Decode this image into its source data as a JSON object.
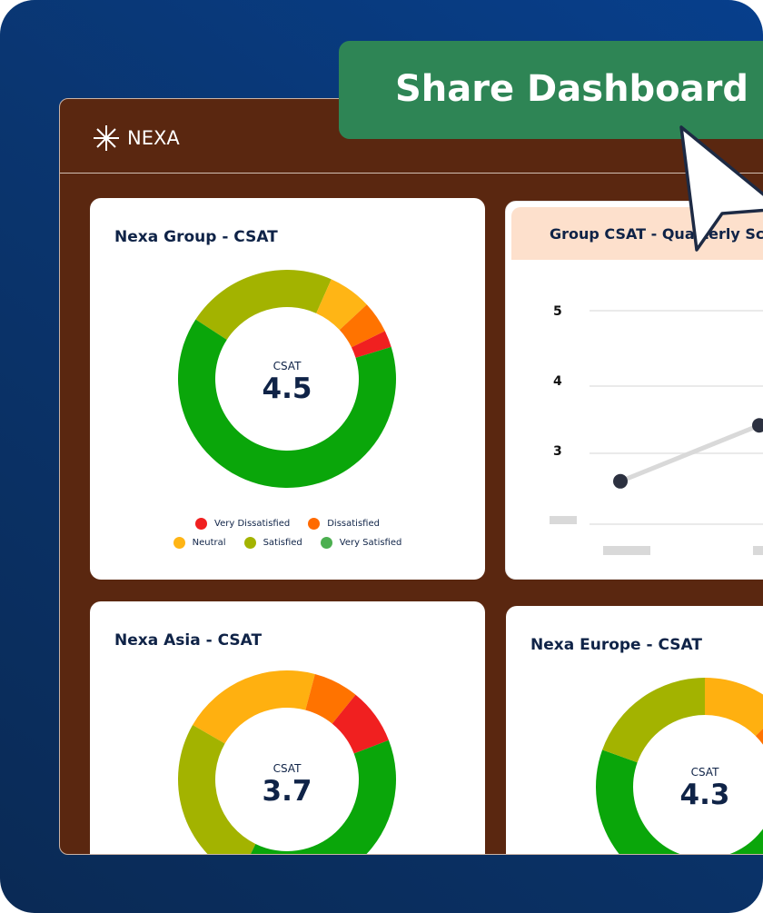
{
  "share_button": {
    "label": "Share Dashboard"
  },
  "header": {
    "brand": "NEXA",
    "logo_icon": "asterisk-star-icon"
  },
  "legend": [
    {
      "label": "Very Dissatisfied",
      "color": "#f02020"
    },
    {
      "label": "Dissatisfied",
      "color": "#ff6a00"
    },
    {
      "label": "Neutral",
      "color": "#ffb515"
    },
    {
      "label": "Satisfied",
      "color": "#a3b300"
    },
    {
      "label": "Very Satisfied",
      "color": "#4caf50"
    }
  ],
  "cards": [
    {
      "title": "Nexa Group - CSAT",
      "metric_label": "CSAT",
      "metric_value": "4.5",
      "segments": [
        {
          "label": "Satisfied",
          "pct": 22.5,
          "color": "#a3b300"
        },
        {
          "label": "Neutral",
          "pct": 6.4,
          "color": "#ffb515"
        },
        {
          "label": "Dissatisfied",
          "pct": 4.7,
          "color": "#ff7300"
        },
        {
          "label": "Very Dissatisfied",
          "pct": 2.5,
          "color": "#f02020"
        },
        {
          "label": "Very Satisfied",
          "pct": 63.9,
          "color": "#0aa60a"
        }
      ]
    },
    {
      "title": "Group CSAT - Quarterly Score",
      "y_ticks": [
        "5",
        "4",
        "3"
      ]
    },
    {
      "title": "Nexa Asia - CSAT",
      "metric_label": "CSAT",
      "metric_value": "3.7",
      "segments": [
        {
          "label": "Neutral",
          "pct": 20.8,
          "color": "#ffb010"
        },
        {
          "label": "Dissatisfied",
          "pct": 6.7,
          "color": "#ff7300"
        },
        {
          "label": "Very Dissatisfied",
          "pct": 8.3,
          "color": "#f02020"
        },
        {
          "label": "Very Satisfied",
          "pct": 38.1,
          "color": "#0aa60a"
        },
        {
          "label": "Satisfied",
          "pct": 26.1,
          "color": "#a3b300"
        }
      ]
    },
    {
      "title": "Nexa Europe - CSAT",
      "metric_label": "CSAT",
      "metric_value": "4.3",
      "segments": [
        {
          "label": "Neutral",
          "pct": 12.5,
          "color": "#ffb010"
        },
        {
          "label": "Dissatisfied",
          "pct": 8.3,
          "color": "#ff7300"
        },
        {
          "label": "Very Satisfied",
          "pct": 59.7,
          "color": "#0aa60a"
        },
        {
          "label": "Satisfied",
          "pct": 19.5,
          "color": "#a3b300"
        }
      ]
    }
  ],
  "chart_data": {
    "type": "line",
    "title": "Group CSAT - Quarterly Score",
    "y_ticks": [
      3,
      4,
      5
    ],
    "values": [
      2.6,
      3.4
    ],
    "line_color": "#d9d9d9",
    "point_color": "#2c3140"
  }
}
